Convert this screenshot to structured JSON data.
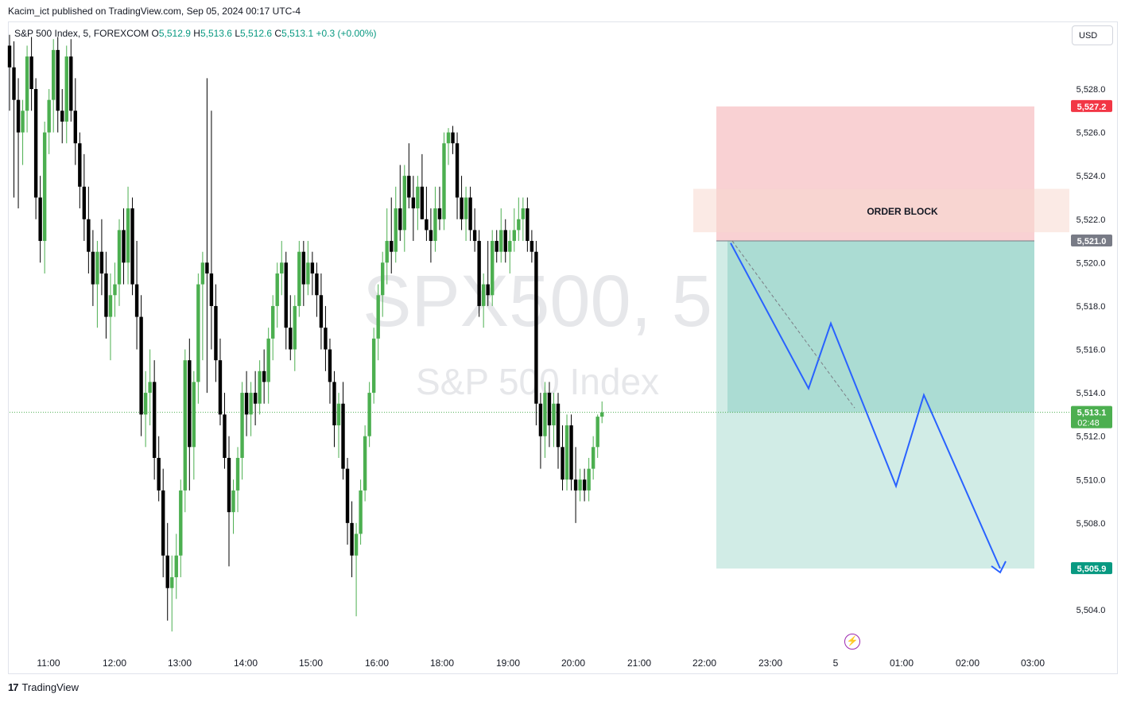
{
  "header": {
    "publisher": "Kacim_ict published on TradingView.com, Sep 05, 2024 00:17 UTC-4"
  },
  "legend": {
    "symbol": "S&P 500 Index, 5, FOREXCOM",
    "open_label": "O",
    "open_value": "5,512.9",
    "high_label": "H",
    "high_value": "5,513.6",
    "low_label": "L",
    "low_value": "5,512.6",
    "close_label": "C",
    "close_value": "5,513.1",
    "change": "+0.3 (+0.00%)"
  },
  "currency": "USD",
  "watermark": {
    "ticker": "SPX500, 5",
    "name": "S&P 500 Index"
  },
  "annotation": {
    "order_block": "ORDER BLOCK"
  },
  "footer": {
    "brand": "TradingView",
    "brand_mark": "17"
  },
  "colors": {
    "up": "#4caf50",
    "down": "#000000",
    "stop_zone": "#f7c5c8",
    "target_zone": "#b2dfd6",
    "order_block": "#f7d9d0",
    "projection": "#2962ff",
    "stop_label": "#f23645",
    "entry_label": "#787b86",
    "target_label": "#089981",
    "price_label": "#4caf50"
  },
  "chart_data": {
    "type": "candlestick",
    "x_ticks": [
      "11:00",
      "12:00",
      "13:00",
      "14:00",
      "15:00",
      "16:00",
      "18:00",
      "19:00",
      "20:00",
      "21:00",
      "22:00",
      "23:00",
      "5",
      "01:00",
      "02:00",
      "03:00"
    ],
    "y_ticks": [
      "5,528.0",
      "5,526.0",
      "5,524.0",
      "5,522.0",
      "5,520.0",
      "5,518.0",
      "5,516.0",
      "5,514.0",
      "5,512.0",
      "5,510.0",
      "5,508.0",
      "5,504.0"
    ],
    "y_range": [
      5502.7,
      5530.5
    ],
    "current_price": {
      "value": 5513.1,
      "label": "5,513.1",
      "countdown": "02:48"
    },
    "position": {
      "stop": {
        "value": 5527.2,
        "label": "5,527.2"
      },
      "entry": {
        "value": 5521.0,
        "label": "5,521.0"
      },
      "target": {
        "value": 5505.9,
        "label": "5,505.9"
      }
    },
    "order_block_range": [
      5521.4,
      5523.4
    ],
    "projection_path": [
      {
        "t": 1,
        "price": 5520.9
      },
      {
        "t": 15,
        "price": 5514.2
      },
      {
        "t": 19,
        "price": 5517.2
      },
      {
        "t": 30,
        "price": 5509.7
      },
      {
        "t": 34,
        "price": 5513.9
      },
      {
        "t": 46,
        "price": 5505.9
      }
    ],
    "candle_width_note": "5-minute candles, approximate reconstruction",
    "candles": [
      {
        "o": 5530.0,
        "h": 5530.5,
        "l": 5527.0,
        "c": 5529.0
      },
      {
        "o": 5529.0,
        "h": 5530.2,
        "l": 5523.0,
        "c": 5527.5
      },
      {
        "o": 5527.5,
        "h": 5528.5,
        "l": 5522.5,
        "c": 5526.0
      },
      {
        "o": 5526.0,
        "h": 5527.5,
        "l": 5524.5,
        "c": 5527.0
      },
      {
        "o": 5527.0,
        "h": 5530.0,
        "l": 5526.0,
        "c": 5529.5
      },
      {
        "o": 5529.5,
        "h": 5530.4,
        "l": 5527.0,
        "c": 5528.0
      },
      {
        "o": 5528.0,
        "h": 5528.5,
        "l": 5522.0,
        "c": 5523.0
      },
      {
        "o": 5523.0,
        "h": 5524.0,
        "l": 5520.0,
        "c": 5521.0
      },
      {
        "o": 5521.0,
        "h": 5526.5,
        "l": 5519.5,
        "c": 5526.0
      },
      {
        "o": 5526.0,
        "h": 5528.0,
        "l": 5525.0,
        "c": 5527.5
      },
      {
        "o": 5527.5,
        "h": 5530.3,
        "l": 5526.0,
        "c": 5529.8
      },
      {
        "o": 5529.8,
        "h": 5530.4,
        "l": 5526.0,
        "c": 5527.0
      },
      {
        "o": 5527.0,
        "h": 5528.0,
        "l": 5525.5,
        "c": 5526.5
      },
      {
        "o": 5526.5,
        "h": 5530.0,
        "l": 5525.5,
        "c": 5529.5
      },
      {
        "o": 5529.5,
        "h": 5530.3,
        "l": 5526.5,
        "c": 5527.0
      },
      {
        "o": 5527.0,
        "h": 5528.5,
        "l": 5524.5,
        "c": 5525.5
      },
      {
        "o": 5525.5,
        "h": 5526.0,
        "l": 5522.5,
        "c": 5523.5
      },
      {
        "o": 5523.5,
        "h": 5525.0,
        "l": 5521.0,
        "c": 5522.0
      },
      {
        "o": 5522.0,
        "h": 5523.5,
        "l": 5519.5,
        "c": 5520.5
      },
      {
        "o": 5520.5,
        "h": 5521.5,
        "l": 5518.0,
        "c": 5519.0
      },
      {
        "o": 5519.0,
        "h": 5521.0,
        "l": 5517.0,
        "c": 5520.5
      },
      {
        "o": 5520.5,
        "h": 5522.0,
        "l": 5518.5,
        "c": 5519.5
      },
      {
        "o": 5519.5,
        "h": 5520.5,
        "l": 5516.5,
        "c": 5517.5
      },
      {
        "o": 5517.5,
        "h": 5519.5,
        "l": 5515.5,
        "c": 5518.5
      },
      {
        "o": 5518.5,
        "h": 5520.0,
        "l": 5517.5,
        "c": 5519.0
      },
      {
        "o": 5519.0,
        "h": 5522.0,
        "l": 5518.0,
        "c": 5521.5
      },
      {
        "o": 5521.5,
        "h": 5522.5,
        "l": 5519.0,
        "c": 5520.0
      },
      {
        "o": 5520.0,
        "h": 5523.5,
        "l": 5519.0,
        "c": 5522.5
      },
      {
        "o": 5522.5,
        "h": 5523.0,
        "l": 5518.5,
        "c": 5519.0
      },
      {
        "o": 5519.0,
        "h": 5521.0,
        "l": 5516.0,
        "c": 5517.5
      },
      {
        "o": 5517.5,
        "h": 5518.5,
        "l": 5512.0,
        "c": 5513.0
      },
      {
        "o": 5513.0,
        "h": 5515.0,
        "l": 5511.5,
        "c": 5514.0
      },
      {
        "o": 5514.0,
        "h": 5516.0,
        "l": 5512.5,
        "c": 5514.5
      },
      {
        "o": 5514.5,
        "h": 5515.5,
        "l": 5510.0,
        "c": 5511.0
      },
      {
        "o": 5511.0,
        "h": 5512.0,
        "l": 5509.0,
        "c": 5509.5
      },
      {
        "o": 5509.5,
        "h": 5510.5,
        "l": 5505.5,
        "c": 5506.5
      },
      {
        "o": 5506.5,
        "h": 5508.0,
        "l": 5503.5,
        "c": 5505.0
      },
      {
        "o": 5505.0,
        "h": 5506.5,
        "l": 5503.0,
        "c": 5505.5
      },
      {
        "o": 5505.5,
        "h": 5507.5,
        "l": 5504.5,
        "c": 5506.5
      },
      {
        "o": 5506.5,
        "h": 5510.0,
        "l": 5505.5,
        "c": 5509.5
      },
      {
        "o": 5509.5,
        "h": 5516.0,
        "l": 5508.5,
        "c": 5515.5
      },
      {
        "o": 5515.5,
        "h": 5516.5,
        "l": 5509.5,
        "c": 5511.5
      },
      {
        "o": 5511.5,
        "h": 5515.0,
        "l": 5510.0,
        "c": 5514.5
      },
      {
        "o": 5514.5,
        "h": 5519.5,
        "l": 5513.5,
        "c": 5519.0
      },
      {
        "o": 5519.0,
        "h": 5520.5,
        "l": 5515.5,
        "c": 5520.0
      },
      {
        "o": 5520.0,
        "h": 5528.5,
        "l": 5514.0,
        "c": 5519.5
      },
      {
        "o": 5519.5,
        "h": 5527.0,
        "l": 5516.0,
        "c": 5518.0
      },
      {
        "o": 5518.0,
        "h": 5519.0,
        "l": 5514.5,
        "c": 5515.5
      },
      {
        "o": 5515.5,
        "h": 5516.5,
        "l": 5512.5,
        "c": 5513.0
      },
      {
        "o": 5513.0,
        "h": 5514.0,
        "l": 5510.5,
        "c": 5511.0
      },
      {
        "o": 5511.0,
        "h": 5512.0,
        "l": 5506.0,
        "c": 5508.5
      },
      {
        "o": 5508.5,
        "h": 5510.0,
        "l": 5507.5,
        "c": 5509.5
      },
      {
        "o": 5509.5,
        "h": 5511.5,
        "l": 5508.5,
        "c": 5511.0
      },
      {
        "o": 5511.0,
        "h": 5514.5,
        "l": 5510.0,
        "c": 5514.0
      },
      {
        "o": 5514.0,
        "h": 5515.0,
        "l": 5512.0,
        "c": 5513.0
      },
      {
        "o": 5513.0,
        "h": 5514.5,
        "l": 5512.0,
        "c": 5514.0
      },
      {
        "o": 5514.0,
        "h": 5515.0,
        "l": 5512.5,
        "c": 5513.5
      },
      {
        "o": 5513.5,
        "h": 5515.5,
        "l": 5513.0,
        "c": 5515.0
      },
      {
        "o": 5515.0,
        "h": 5516.0,
        "l": 5513.5,
        "c": 5514.5
      },
      {
        "o": 5514.5,
        "h": 5517.0,
        "l": 5513.5,
        "c": 5516.5
      },
      {
        "o": 5516.5,
        "h": 5518.5,
        "l": 5515.5,
        "c": 5518.0
      },
      {
        "o": 5518.0,
        "h": 5520.0,
        "l": 5517.0,
        "c": 5519.5
      },
      {
        "o": 5519.5,
        "h": 5521.0,
        "l": 5518.5,
        "c": 5520.0
      },
      {
        "o": 5520.0,
        "h": 5520.5,
        "l": 5516.0,
        "c": 5517.0
      },
      {
        "o": 5517.0,
        "h": 5518.5,
        "l": 5515.5,
        "c": 5516.0
      },
      {
        "o": 5516.0,
        "h": 5518.5,
        "l": 5515.0,
        "c": 5518.0
      },
      {
        "o": 5518.0,
        "h": 5521.0,
        "l": 5517.5,
        "c": 5520.5
      },
      {
        "o": 5520.5,
        "h": 5521.0,
        "l": 5518.0,
        "c": 5519.0
      },
      {
        "o": 5519.0,
        "h": 5521.0,
        "l": 5518.5,
        "c": 5520.0
      },
      {
        "o": 5520.0,
        "h": 5520.5,
        "l": 5518.5,
        "c": 5519.5
      },
      {
        "o": 5519.5,
        "h": 5520.0,
        "l": 5517.5,
        "c": 5518.5
      },
      {
        "o": 5518.5,
        "h": 5519.5,
        "l": 5516.0,
        "c": 5517.0
      },
      {
        "o": 5517.0,
        "h": 5518.0,
        "l": 5515.0,
        "c": 5516.0
      },
      {
        "o": 5516.0,
        "h": 5516.5,
        "l": 5513.5,
        "c": 5514.5
      },
      {
        "o": 5514.5,
        "h": 5515.0,
        "l": 5511.5,
        "c": 5512.5
      },
      {
        "o": 5512.5,
        "h": 5514.0,
        "l": 5511.0,
        "c": 5513.5
      },
      {
        "o": 5513.5,
        "h": 5514.5,
        "l": 5510.0,
        "c": 5510.5
      },
      {
        "o": 5510.5,
        "h": 5511.0,
        "l": 5507.0,
        "c": 5508.0
      },
      {
        "o": 5508.0,
        "h": 5509.0,
        "l": 5505.5,
        "c": 5506.5
      },
      {
        "o": 5506.5,
        "h": 5508.0,
        "l": 5503.7,
        "c": 5507.5
      },
      {
        "o": 5507.5,
        "h": 5510.0,
        "l": 5507.0,
        "c": 5509.5
      },
      {
        "o": 5509.5,
        "h": 5512.5,
        "l": 5509.0,
        "c": 5512.0
      },
      {
        "o": 5512.0,
        "h": 5514.5,
        "l": 5511.5,
        "c": 5514.0
      },
      {
        "o": 5514.0,
        "h": 5517.0,
        "l": 5513.5,
        "c": 5516.5
      },
      {
        "o": 5516.5,
        "h": 5519.0,
        "l": 5515.5,
        "c": 5518.5
      },
      {
        "o": 5518.5,
        "h": 5520.5,
        "l": 5517.5,
        "c": 5520.0
      },
      {
        "o": 5520.0,
        "h": 5522.5,
        "l": 5519.0,
        "c": 5521.0
      },
      {
        "o": 5521.0,
        "h": 5523.0,
        "l": 5519.5,
        "c": 5520.5
      },
      {
        "o": 5520.5,
        "h": 5523.5,
        "l": 5520.0,
        "c": 5522.5
      },
      {
        "o": 5522.5,
        "h": 5524.5,
        "l": 5521.0,
        "c": 5521.5
      },
      {
        "o": 5521.5,
        "h": 5524.5,
        "l": 5520.5,
        "c": 5524.0
      },
      {
        "o": 5524.0,
        "h": 5525.5,
        "l": 5522.5,
        "c": 5523.0
      },
      {
        "o": 5523.0,
        "h": 5524.0,
        "l": 5521.0,
        "c": 5522.5
      },
      {
        "o": 5522.5,
        "h": 5524.0,
        "l": 5521.5,
        "c": 5523.5
      },
      {
        "o": 5523.5,
        "h": 5525.0,
        "l": 5522.0,
        "c": 5522.0
      },
      {
        "o": 5522.0,
        "h": 5523.5,
        "l": 5521.0,
        "c": 5521.5
      },
      {
        "o": 5521.5,
        "h": 5522.5,
        "l": 5520.0,
        "c": 5521.0
      },
      {
        "o": 5521.0,
        "h": 5523.5,
        "l": 5520.5,
        "c": 5522.5
      },
      {
        "o": 5522.5,
        "h": 5523.5,
        "l": 5521.5,
        "c": 5522.0
      },
      {
        "o": 5522.0,
        "h": 5526.0,
        "l": 5521.5,
        "c": 5525.5
      },
      {
        "o": 5525.5,
        "h": 5526.2,
        "l": 5524.5,
        "c": 5526.0
      },
      {
        "o": 5526.0,
        "h": 5526.3,
        "l": 5525.0,
        "c": 5525.5
      },
      {
        "o": 5525.5,
        "h": 5526.0,
        "l": 5522.0,
        "c": 5523.0
      },
      {
        "o": 5523.0,
        "h": 5524.0,
        "l": 5521.5,
        "c": 5522.0
      },
      {
        "o": 5522.0,
        "h": 5523.5,
        "l": 5521.0,
        "c": 5523.0
      },
      {
        "o": 5523.0,
        "h": 5523.5,
        "l": 5521.0,
        "c": 5521.5
      },
      {
        "o": 5521.5,
        "h": 5522.5,
        "l": 5520.5,
        "c": 5521.0
      },
      {
        "o": 5521.0,
        "h": 5521.5,
        "l": 5517.5,
        "c": 5518.0
      },
      {
        "o": 5518.0,
        "h": 5519.5,
        "l": 5517.0,
        "c": 5519.0
      },
      {
        "o": 5519.0,
        "h": 5521.0,
        "l": 5518.0,
        "c": 5518.5
      },
      {
        "o": 5518.5,
        "h": 5521.5,
        "l": 5518.0,
        "c": 5521.0
      },
      {
        "o": 5521.0,
        "h": 5521.5,
        "l": 5520.0,
        "c": 5520.5
      },
      {
        "o": 5520.5,
        "h": 5522.5,
        "l": 5520.0,
        "c": 5521.5
      },
      {
        "o": 5521.5,
        "h": 5522.0,
        "l": 5520.0,
        "c": 5520.5
      },
      {
        "o": 5520.5,
        "h": 5521.5,
        "l": 5519.5,
        "c": 5521.0
      },
      {
        "o": 5521.0,
        "h": 5522.5,
        "l": 5520.5,
        "c": 5521.5
      },
      {
        "o": 5521.5,
        "h": 5523.0,
        "l": 5521.0,
        "c": 5522.0
      },
      {
        "o": 5522.0,
        "h": 5523.0,
        "l": 5521.0,
        "c": 5522.5
      },
      {
        "o": 5522.5,
        "h": 5523.0,
        "l": 5520.5,
        "c": 5521.0
      },
      {
        "o": 5521.0,
        "h": 5521.5,
        "l": 5520.0,
        "c": 5520.5
      },
      {
        "o": 5520.5,
        "h": 5521.0,
        "l": 5512.5,
        "c": 5513.5
      },
      {
        "o": 5513.5,
        "h": 5514.0,
        "l": 5510.5,
        "c": 5512.0
      },
      {
        "o": 5512.0,
        "h": 5514.5,
        "l": 5511.0,
        "c": 5514.0
      },
      {
        "o": 5514.0,
        "h": 5514.5,
        "l": 5511.5,
        "c": 5512.5
      },
      {
        "o": 5512.5,
        "h": 5514.0,
        "l": 5511.5,
        "c": 5513.5
      },
      {
        "o": 5513.5,
        "h": 5514.0,
        "l": 5510.5,
        "c": 5511.5
      },
      {
        "o": 5511.5,
        "h": 5512.5,
        "l": 5509.5,
        "c": 5510.0
      },
      {
        "o": 5510.0,
        "h": 5513.0,
        "l": 5509.5,
        "c": 5512.5
      },
      {
        "o": 5512.5,
        "h": 5513.0,
        "l": 5509.5,
        "c": 5510.0
      },
      {
        "o": 5510.0,
        "h": 5511.5,
        "l": 5508.0,
        "c": 5509.5
      },
      {
        "o": 5509.5,
        "h": 5510.5,
        "l": 5509.0,
        "c": 5510.0
      },
      {
        "o": 5510.0,
        "h": 5510.5,
        "l": 5509.0,
        "c": 5509.5
      },
      {
        "o": 5509.5,
        "h": 5511.0,
        "l": 5509.0,
        "c": 5510.5
      },
      {
        "o": 5510.5,
        "h": 5512.0,
        "l": 5510.0,
        "c": 5511.5
      },
      {
        "o": 5511.5,
        "h": 5513.0,
        "l": 5511.0,
        "c": 5512.9
      },
      {
        "o": 5512.9,
        "h": 5513.6,
        "l": 5512.6,
        "c": 5513.1
      }
    ]
  }
}
